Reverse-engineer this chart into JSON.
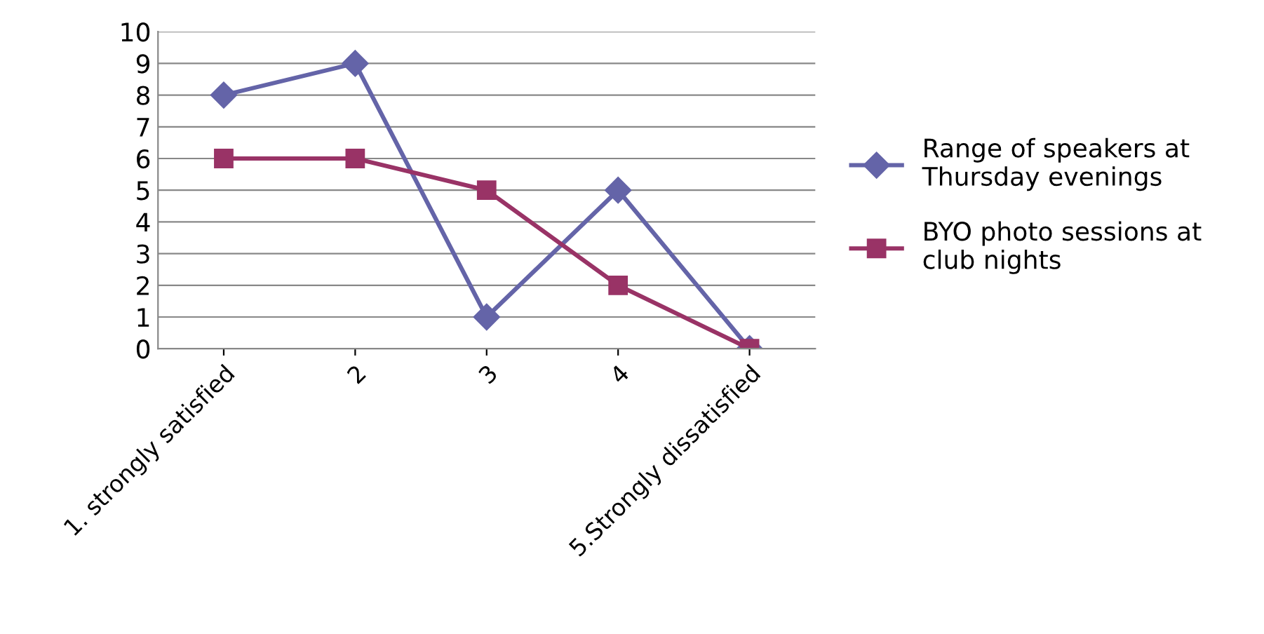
{
  "chart_data": {
    "type": "line",
    "categories": [
      "1. strongly satisfied",
      "2",
      "3",
      "4",
      "5.Strongly dissatisfied"
    ],
    "series": [
      {
        "name": "Range of speakers at Thursday evenings",
        "color": "#6464a8",
        "values": [
          8,
          9,
          1,
          5,
          0
        ],
        "marker": "diamond"
      },
      {
        "name": "BYO photo sessions at club nights",
        "color": "#993366",
        "values": [
          6,
          6,
          5,
          2,
          0
        ],
        "marker": "square"
      }
    ],
    "ylim": [
      0,
      10
    ],
    "yticks": [
      0,
      1,
      2,
      3,
      4,
      5,
      6,
      7,
      8,
      9,
      10
    ],
    "grid": "y",
    "legend": "right",
    "line_style": "solid"
  }
}
